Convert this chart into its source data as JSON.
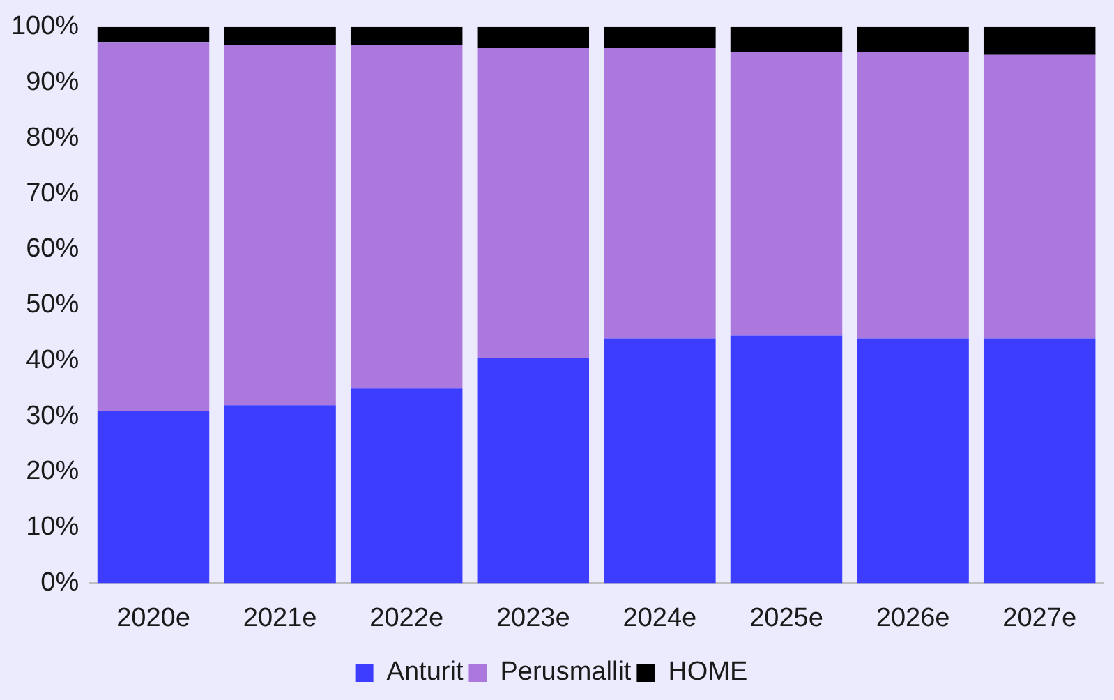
{
  "chart_data": {
    "type": "bar",
    "stacked": true,
    "categories": [
      "2020e",
      "2021e",
      "2022e",
      "2023e",
      "2024e",
      "2025e",
      "2026e",
      "2027e"
    ],
    "series": [
      {
        "name": "Anturit",
        "color": "#3d3dff",
        "values": [
          31,
          32,
          35,
          40.5,
          44,
          44.5,
          44,
          44
        ]
      },
      {
        "name": "Perusmallit",
        "color": "#ab78dd",
        "values": [
          66.3,
          64.8,
          61.7,
          55.7,
          52.2,
          51.1,
          51.6,
          51
        ]
      },
      {
        "name": "HOME",
        "color": "#000000",
        "values": [
          2.7,
          3.2,
          3.3,
          3.8,
          3.8,
          4.4,
          4.4,
          5
        ]
      }
    ],
    "ylim": [
      0,
      100
    ],
    "yticks": [
      {
        "value": 0,
        "label": "0%"
      },
      {
        "value": 10,
        "label": "10%"
      },
      {
        "value": 20,
        "label": "20%"
      },
      {
        "value": 30,
        "label": "30%"
      },
      {
        "value": 40,
        "label": "40%"
      },
      {
        "value": 50,
        "label": "50%"
      },
      {
        "value": 60,
        "label": "60%"
      },
      {
        "value": 70,
        "label": "70%"
      },
      {
        "value": 80,
        "label": "80%"
      },
      {
        "value": 90,
        "label": "90%"
      },
      {
        "value": 100,
        "label": "100%"
      }
    ],
    "grid": false,
    "legend": "bottom"
  }
}
